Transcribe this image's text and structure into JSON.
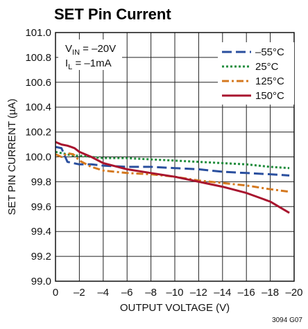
{
  "chart_data": {
    "type": "line",
    "title": "SET Pin Current",
    "xlabel": "OUTPUT VOLTAGE (V)",
    "ylabel": "SET PIN CURRENT (µA)",
    "figure_code": "3094 G07",
    "conditions": {
      "vin_prefix": "V",
      "vin_sub": "IN",
      "vin_value": " = –20V",
      "il_prefix": "I",
      "il_sub": "L",
      "il_value": " = –1mA"
    },
    "xlim": [
      0,
      -20
    ],
    "ylim": [
      99.0,
      101.0
    ],
    "x_ticks": [
      0,
      -2,
      -4,
      -6,
      -8,
      -10,
      -12,
      -14,
      -16,
      -18,
      -20
    ],
    "x_tick_labels": [
      "0",
      "–2",
      "–4",
      "–6",
      "–8",
      "–10",
      "–12",
      "–14",
      "–16",
      "–18",
      "–20"
    ],
    "y_ticks": [
      99.0,
      99.2,
      99.4,
      99.6,
      99.8,
      100.0,
      100.2,
      100.4,
      100.6,
      100.8,
      101.0
    ],
    "y_tick_labels": [
      "99.0",
      "99.2",
      "99.4",
      "99.6",
      "99.8",
      "100.0",
      "100.2",
      "100.4",
      "100.6",
      "100.8",
      "101.0"
    ],
    "grid": true,
    "legend_position": "top-right",
    "series": [
      {
        "name": "–55°C",
        "color": "#2a4f9e",
        "dash": "long-dash",
        "x": [
          0,
          -0.5,
          -1.0,
          -1.5,
          -2.0,
          -3.0,
          -4.0,
          -6.0,
          -8.0,
          -10.0,
          -12.0,
          -14.0,
          -16.0,
          -18.0,
          -19.6
        ],
        "y": [
          100.08,
          100.07,
          99.96,
          99.95,
          99.94,
          99.94,
          99.93,
          99.92,
          99.92,
          99.91,
          99.9,
          99.88,
          99.87,
          99.86,
          99.85
        ]
      },
      {
        "name": "25°C",
        "color": "#1f8c3c",
        "dash": "dotted",
        "x": [
          0,
          -0.5,
          -1.0,
          -1.5,
          -2.0,
          -3.0,
          -4.0,
          -6.0,
          -8.0,
          -10.0,
          -12.0,
          -14.0,
          -16.0,
          -18.0,
          -19.6
        ],
        "y": [
          100.04,
          100.03,
          100.02,
          100.01,
          100.01,
          100.0,
          99.99,
          99.99,
          99.98,
          99.97,
          99.96,
          99.95,
          99.94,
          99.92,
          99.91
        ]
      },
      {
        "name": "125°C",
        "color": "#d4781f",
        "dash": "dash-dot",
        "x": [
          0,
          -0.5,
          -1.0,
          -1.5,
          -2.0,
          -3.0,
          -4.0,
          -6.0,
          -8.0,
          -10.0,
          -12.0,
          -14.0,
          -16.0,
          -18.0,
          -19.6
        ],
        "y": [
          100.02,
          100.0,
          100.03,
          100.02,
          99.97,
          99.92,
          99.89,
          99.87,
          99.86,
          99.84,
          99.81,
          99.79,
          99.77,
          99.74,
          99.72
        ]
      },
      {
        "name": "150°C",
        "color": "#a8142e",
        "dash": "solid",
        "x": [
          0,
          -0.5,
          -1.0,
          -1.3,
          -1.6,
          -2.0,
          -3.0,
          -4.0,
          -6.0,
          -8.0,
          -10.0,
          -12.0,
          -14.0,
          -16.0,
          -18.0,
          -19.6
        ],
        "y": [
          100.12,
          100.1,
          100.09,
          100.08,
          100.07,
          100.04,
          100.0,
          99.95,
          99.9,
          99.87,
          99.84,
          99.8,
          99.76,
          99.71,
          99.64,
          99.55
        ]
      }
    ]
  }
}
